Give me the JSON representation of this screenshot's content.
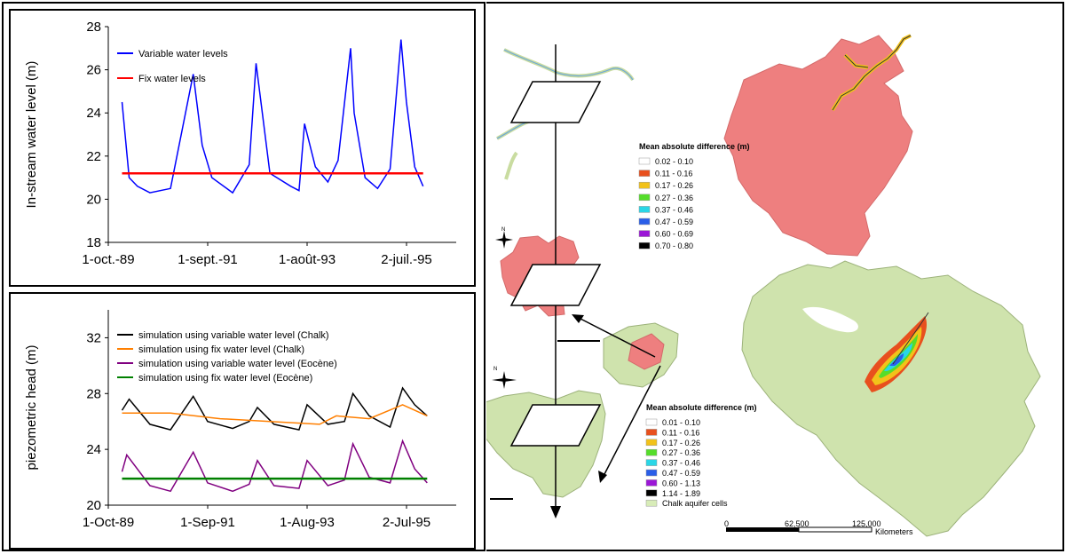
{
  "chart_data": [
    {
      "type": "line",
      "ylabel": "In-stream water level (m)",
      "xlabel": "",
      "ylim": [
        18,
        28
      ],
      "yticks": [
        18,
        20,
        22,
        24,
        26,
        28
      ],
      "x_ticks": [
        "1-oct.-89",
        "1-sept.-91",
        "1-août-93",
        "2-juil.-95"
      ],
      "x_range": [
        "1989-03-01",
        "1996-03-01"
      ],
      "grid": false,
      "legend": "top-left",
      "series": [
        {
          "name": "Variable water levels",
          "color": "#0000ff",
          "x": [
            "1989-06-10",
            "1989-08-01",
            "1989-10-01",
            "1990-01-01",
            "1990-06-01",
            "1990-11-15",
            "1991-01-20",
            "1991-04-01",
            "1991-09-01",
            "1992-01-01",
            "1992-02-20",
            "1992-06-01",
            "1992-11-01",
            "1993-01-01",
            "1993-02-10",
            "1993-05-01",
            "1993-08-01",
            "1993-10-15",
            "1994-01-15",
            "1994-02-10",
            "1994-05-01",
            "1994-08-01",
            "1994-11-01",
            "1995-01-20",
            "1995-03-01",
            "1995-05-01",
            "1995-07-02"
          ],
          "y": [
            24.5,
            21.0,
            20.6,
            20.3,
            20.5,
            25.8,
            22.5,
            21.0,
            20.3,
            21.6,
            26.3,
            21.2,
            20.6,
            20.4,
            23.5,
            21.5,
            20.8,
            21.8,
            27.0,
            24.0,
            21.0,
            20.5,
            21.4,
            27.4,
            24.5,
            21.5,
            20.6
          ]
        },
        {
          "name": "Fix water levels",
          "color": "#ff0000",
          "x": [
            "1989-06-10",
            "1995-07-02"
          ],
          "y": [
            21.2,
            21.2
          ]
        }
      ]
    },
    {
      "type": "line",
      "ylabel": "piezometric head (m)",
      "xlabel": "",
      "ylim": [
        20,
        34
      ],
      "yticks": [
        20,
        24,
        28,
        32
      ],
      "x_ticks": [
        "1-Oct-89",
        "1-Sep-91",
        "1-Aug-93",
        "2-Jul-95"
      ],
      "x_range": [
        "1989-03-01",
        "1996-03-01"
      ],
      "grid": false,
      "legend": "top-left",
      "series": [
        {
          "name": "simulation using variable water level (Chalk)",
          "color": "#000000",
          "x": [
            "1989-06-10",
            "1989-08-01",
            "1990-01-01",
            "1990-06-01",
            "1990-11-15",
            "1991-03-01",
            "1991-09-01",
            "1992-01-01",
            "1992-03-01",
            "1992-07-01",
            "1993-01-01",
            "1993-03-01",
            "1993-08-01",
            "1993-12-01",
            "1994-02-01",
            "1994-06-01",
            "1994-11-01",
            "1995-02-01",
            "1995-05-01",
            "1995-08-01"
          ],
          "y": [
            26.8,
            27.6,
            25.8,
            25.4,
            27.8,
            26.0,
            25.5,
            26.0,
            27.0,
            25.8,
            25.4,
            27.2,
            25.8,
            26.0,
            28.0,
            26.4,
            25.6,
            28.4,
            27.2,
            26.4
          ]
        },
        {
          "name": "simulation using fix water level (Chalk)",
          "color": "#ff7f00",
          "x": [
            "1989-06-10",
            "1990-06-01",
            "1991-06-01",
            "1992-06-01",
            "1993-06-01",
            "1993-10-01",
            "1994-06-01",
            "1995-02-01",
            "1995-08-01"
          ],
          "y": [
            26.6,
            26.6,
            26.2,
            26.0,
            25.8,
            26.4,
            26.2,
            27.2,
            26.4
          ]
        },
        {
          "name": "simulation using variable water level (Eocène)",
          "color": "#800080",
          "x": [
            "1989-06-10",
            "1989-07-15",
            "1990-01-01",
            "1990-06-01",
            "1990-11-15",
            "1991-03-01",
            "1991-09-01",
            "1992-01-01",
            "1992-03-01",
            "1992-07-01",
            "1993-01-01",
            "1993-03-01",
            "1993-08-01",
            "1993-12-01",
            "1994-02-01",
            "1994-06-01",
            "1994-11-01",
            "1995-02-01",
            "1995-05-01",
            "1995-08-01"
          ],
          "y": [
            22.4,
            23.6,
            21.4,
            21.0,
            23.8,
            21.6,
            21.0,
            21.5,
            23.2,
            21.4,
            21.2,
            23.2,
            21.4,
            21.8,
            24.4,
            22.0,
            21.6,
            24.6,
            22.6,
            21.6
          ]
        },
        {
          "name": "simulation using fix water level (Eocène)",
          "color": "#008000",
          "x": [
            "1989-06-10",
            "1995-08-01"
          ],
          "y": [
            21.9,
            21.9
          ]
        }
      ]
    }
  ],
  "maps": {
    "legend_top": {
      "title": "Mean absolute difference (m)",
      "items": [
        {
          "label": "0.02 - 0.10",
          "color": "#ffffff"
        },
        {
          "label": "0.11 - 0.16",
          "color": "#e8501e"
        },
        {
          "label": "0.17 - 0.26",
          "color": "#f2c21a"
        },
        {
          "label": "0.27 - 0.36",
          "color": "#55dd2a"
        },
        {
          "label": "0.37 - 0.46",
          "color": "#2ad6e6"
        },
        {
          "label": "0.47 - 0.59",
          "color": "#2a5ee8"
        },
        {
          "label": "0.60 - 0.69",
          "color": "#9b17d6"
        },
        {
          "label": "0.70 - 0.80",
          "color": "#000000"
        }
      ]
    },
    "legend_bottom": {
      "title": "Mean absolute difference (m)",
      "items": [
        {
          "label": "0.01 - 0.10",
          "color": "#ffffff"
        },
        {
          "label": "0.11 - 0.16",
          "color": "#e8501e"
        },
        {
          "label": "0.17 - 0.26",
          "color": "#f2c21a"
        },
        {
          "label": "0.27 - 0.36",
          "color": "#55dd2a"
        },
        {
          "label": "0.37 - 0.46",
          "color": "#2ad6e6"
        },
        {
          "label": "0.47 - 0.59",
          "color": "#2a5ee8"
        },
        {
          "label": "0.60 - 1.13",
          "color": "#9b17d6"
        },
        {
          "label": "1.14 - 1.89",
          "color": "#000000"
        },
        {
          "label": "Chalk aquifer cells",
          "color": "#d8ecb8"
        }
      ]
    },
    "scale_labels": [
      "0",
      "62,500",
      "125,000",
      "Kilometers"
    ],
    "compass_label": "N",
    "region_colors": {
      "eocene": "#ee7f7f",
      "chalk": "#cfe3ad"
    }
  }
}
